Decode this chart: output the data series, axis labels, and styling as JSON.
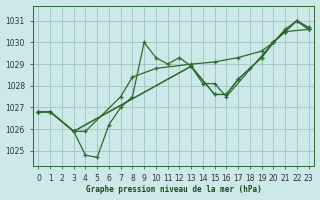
{
  "background_color": "#cce8e8",
  "grid_color": "#99bbbb",
  "line_color": "#2d6a2d",
  "xlabel": "Graphe pression niveau de la mer (hPa)",
  "xlim": [
    -0.5,
    23.5
  ],
  "ylim": [
    1024.3,
    1031.7
  ],
  "yticks": [
    1025,
    1026,
    1027,
    1028,
    1029,
    1030,
    1031
  ],
  "xtick_labels": [
    "0",
    "1",
    "2",
    "3",
    "4",
    "5",
    "6",
    "7",
    "8",
    "9",
    "10",
    "11",
    "12",
    "13",
    "14",
    "15",
    "16",
    "17",
    "18",
    "19",
    "20",
    "21",
    "22",
    "23"
  ],
  "series": [
    {
      "x": [
        0,
        1,
        3,
        4,
        5,
        6,
        7,
        8,
        9,
        10,
        11,
        12,
        13,
        14,
        15,
        16,
        20,
        21,
        22,
        23
      ],
      "y": [
        1026.8,
        1026.8,
        1025.9,
        1024.8,
        1024.7,
        1026.2,
        1027.0,
        1027.5,
        1030.0,
        1029.3,
        1029.0,
        1029.3,
        1028.9,
        1028.1,
        1028.1,
        1027.5,
        1030.0,
        1030.6,
        1031.0,
        1030.7
      ]
    },
    {
      "x": [
        0,
        1,
        3,
        4,
        7,
        8,
        10,
        13,
        15,
        17,
        19,
        20,
        21,
        23
      ],
      "y": [
        1026.8,
        1026.8,
        1025.9,
        1025.9,
        1027.5,
        1028.4,
        1028.8,
        1029.0,
        1029.1,
        1029.3,
        1029.6,
        1030.0,
        1030.5,
        1030.6
      ]
    },
    {
      "x": [
        0,
        1,
        3,
        13,
        15,
        16,
        17,
        18,
        19,
        20,
        21,
        22,
        23
      ],
      "y": [
        1026.8,
        1026.8,
        1025.9,
        1028.9,
        1027.6,
        1027.6,
        1028.3,
        1028.8,
        1029.3,
        1030.0,
        1030.5,
        1031.0,
        1030.6
      ]
    },
    {
      "x": [
        0,
        1,
        3,
        13,
        15,
        16,
        17,
        19,
        20,
        21,
        22,
        23
      ],
      "y": [
        1026.8,
        1026.8,
        1025.9,
        1028.9,
        1027.6,
        1027.6,
        1028.3,
        1029.3,
        1030.0,
        1030.5,
        1031.0,
        1030.6
      ]
    }
  ]
}
